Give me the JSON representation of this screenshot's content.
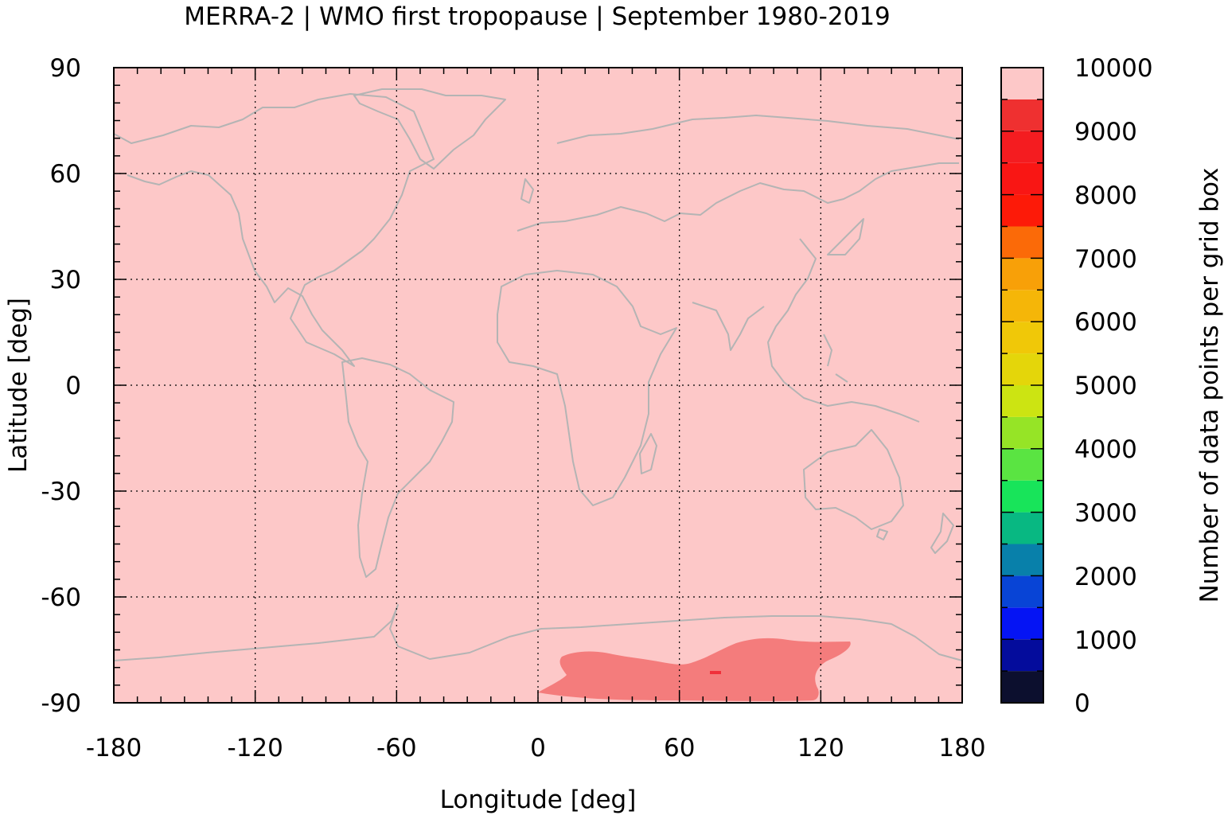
{
  "chart_data": {
    "type": "heatmap",
    "title": "MERRA-2 | WMO first tropopause | September 1980-2019",
    "xlabel": "Longitude [deg]",
    "ylabel": "Latitude [deg]",
    "colorbar_label": "Number of data points per grid box",
    "xlim": [
      -180,
      180
    ],
    "ylim": [
      -90,
      90
    ],
    "x_ticks": [
      "-180",
      "-120",
      "-60",
      "0",
      "60",
      "120",
      "180"
    ],
    "y_ticks": [
      "90",
      "60",
      "30",
      "0",
      "-30",
      "-60",
      "-90"
    ],
    "colorbar_ticks": [
      "10000",
      "9000",
      "8000",
      "7000",
      "6000",
      "5000",
      "4000",
      "3000",
      "2000",
      "1000",
      "0"
    ],
    "colorbar_range": [
      0,
      10000
    ],
    "colorbar_colors": [
      "#0c0f2e",
      "#040c9c",
      "#0514f4",
      "#0844d6",
      "#0880aa",
      "#08b882",
      "#18e45a",
      "#5ae442",
      "#96e426",
      "#cce412",
      "#e4d60a",
      "#f0c808",
      "#f5b608",
      "#f8a008",
      "#fb6a08",
      "#fd1a08",
      "#f91614",
      "#f41c20",
      "#ef3030",
      "#f47c7c",
      "#fdc8c8"
    ],
    "grid": true,
    "grid_style": "dotted",
    "background_value": 9950,
    "regions": [
      {
        "name": "",
        "value": 9400,
        "lon_range": [
          0,
          133
        ],
        "lat_range": [
          -90,
          -74
        ]
      },
      {
        "name": "",
        "value": 8800,
        "lon": 75,
        "lat": -82
      }
    ],
    "overlay": "coastlines"
  }
}
